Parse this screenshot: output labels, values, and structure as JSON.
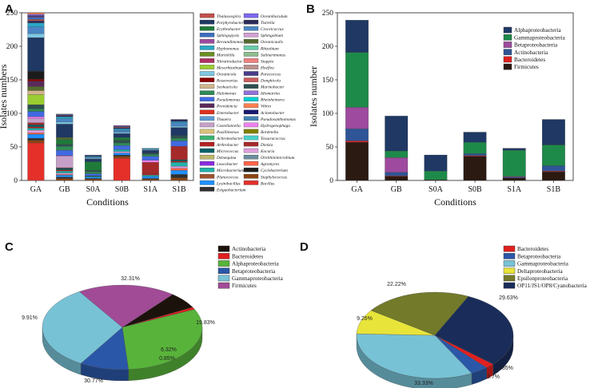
{
  "panels": {
    "a": "A",
    "b": "B",
    "c": "C",
    "d": "D"
  },
  "chart_data": [
    {
      "id": "A",
      "type": "bar",
      "stacked": true,
      "xlabel": "Conditions",
      "ylabel": "Isolates numbers",
      "ylim": [
        0,
        250
      ],
      "yticks": [
        0,
        50,
        100,
        150,
        200,
        250
      ],
      "categories": [
        "GA",
        "GB",
        "S0A",
        "S0B",
        "S1A",
        "S1B"
      ],
      "totals": [
        239,
        96,
        38,
        72,
        48,
        91
      ],
      "legend": [
        {
          "name": "Thalassospira",
          "color": "#c0504d"
        },
        {
          "name": "Porphyrobacter",
          "color": "#1f3864"
        },
        {
          "name": "Erythrobacter",
          "color": "#1f7a3a"
        },
        {
          "name": "Sphingopyxis",
          "color": "#3a6ec0"
        },
        {
          "name": "Brevundimonas",
          "color": "#9e4a9e"
        },
        {
          "name": "Hyphomonas",
          "color": "#2aa8c8"
        },
        {
          "name": "Martelella",
          "color": "#6b8e23"
        },
        {
          "name": "Nitratireductor",
          "color": "#b03060"
        },
        {
          "name": "Mesorhizobium",
          "color": "#9acd32"
        },
        {
          "name": "Oceanicola",
          "color": "#7ec8e3"
        },
        {
          "name": "Roseovarius",
          "color": "#8b0000"
        },
        {
          "name": "Seohaeicola",
          "color": "#d2b48c"
        },
        {
          "name": "Halomonas",
          "color": "#2e8b57"
        },
        {
          "name": "Pseudomonas",
          "color": "#4169e1"
        },
        {
          "name": "Providencia",
          "color": "#5a2a5a"
        },
        {
          "name": "Enterobacter",
          "color": "#e0301e"
        },
        {
          "name": "Thauera",
          "color": "#5b9bd5"
        },
        {
          "name": "Castellaniella",
          "color": "#c6a0c8"
        },
        {
          "name": "Pusillimonas",
          "color": "#d9c27a"
        },
        {
          "name": "Achromobacter",
          "color": "#3cb371"
        },
        {
          "name": "Arthrobacter",
          "color": "#b22222"
        },
        {
          "name": "Micrococcus",
          "color": "#006064"
        },
        {
          "name": "Demequina",
          "color": "#bdb76b"
        },
        {
          "name": "Leucobacter",
          "color": "#8a2be2"
        },
        {
          "name": "Microbacterium",
          "color": "#20b2aa"
        },
        {
          "name": "Planococcus",
          "color": "#a0522d"
        },
        {
          "name": "Lysinibacillus",
          "color": "#1e90ff"
        },
        {
          "name": "Exiguobacterium",
          "color": "#2f2f2f"
        },
        {
          "name": "Oceanibaculum",
          "color": "#7b68ee"
        },
        {
          "name": "Tistrella",
          "color": "#2b2b5a"
        },
        {
          "name": "Croceicoccus",
          "color": "#4a86c5"
        },
        {
          "name": "Sphingobium",
          "color": "#d4a0d4"
        },
        {
          "name": "Oceanicaulis",
          "color": "#556b2f"
        },
        {
          "name": "Rhizobium",
          "color": "#66cdaa"
        },
        {
          "name": "Salinarimonas",
          "color": "#8fbc8f"
        },
        {
          "name": "Stappia",
          "color": "#f08080"
        },
        {
          "name": "Hoeflea",
          "color": "#bc8f8f"
        },
        {
          "name": "Paracoccus",
          "color": "#483d8b"
        },
        {
          "name": "Donghicola",
          "color": "#cd5c5c"
        },
        {
          "name": "Marinobacter",
          "color": "#2f4f4f"
        },
        {
          "name": "Idiomarina",
          "color": "#9370db"
        },
        {
          "name": "Rheinheimera",
          "color": "#00ced1"
        },
        {
          "name": "Vibrio",
          "color": "#ff7f50"
        },
        {
          "name": "Acinetobacter",
          "color": "#191970"
        },
        {
          "name": "Pseudoxanthomonas",
          "color": "#4682b4"
        },
        {
          "name": "Hydrogenophaga",
          "color": "#ee82ee"
        },
        {
          "name": "Bordetella",
          "color": "#808000"
        },
        {
          "name": "Tessaracoccus",
          "color": "#48d1cc"
        },
        {
          "name": "Dietzia",
          "color": "#a52a2a"
        },
        {
          "name": "Kocuria",
          "color": "#dda0dd"
        },
        {
          "name": "Ornithinimicrobium",
          "color": "#6b8e9e"
        },
        {
          "name": "Agromyces",
          "color": "#ff6347"
        },
        {
          "name": "Cyclobacterium",
          "color": "#1c1c1c"
        },
        {
          "name": "Staphylococcus",
          "color": "#8b4513"
        },
        {
          "name": "Bacillus",
          "color": "#e5302a"
        }
      ],
      "series": [
        {
          "name": "Bacillus",
          "color": "#e5302a",
          "values": [
            56,
            0,
            0,
            33,
            0,
            0
          ]
        },
        {
          "name": "Staphylococcus",
          "color": "#8b4513",
          "values": [
            4,
            3,
            2,
            3,
            2,
            4
          ]
        },
        {
          "name": "Exiguobacterium",
          "color": "#2f2f2f",
          "values": [
            3,
            2,
            1,
            2,
            1,
            5
          ]
        },
        {
          "name": "Lysinibacillus",
          "color": "#1e90ff",
          "values": [
            6,
            3,
            2,
            3,
            3,
            6
          ]
        },
        {
          "name": "Agromyces",
          "color": "#ff6347",
          "values": [
            2,
            1,
            0,
            0,
            0,
            3
          ]
        },
        {
          "name": "Kocuria",
          "color": "#dda0dd",
          "values": [
            4,
            2,
            0,
            2,
            0,
            3
          ]
        },
        {
          "name": "Microbacterium",
          "color": "#20b2aa",
          "values": [
            3,
            3,
            1,
            3,
            2,
            6
          ]
        },
        {
          "name": "Arthrobacter",
          "color": "#b22222",
          "values": [
            2,
            2,
            0,
            0,
            2,
            2
          ]
        },
        {
          "name": "Micrococcus",
          "color": "#006064",
          "values": [
            3,
            2,
            1,
            0,
            0,
            2
          ]
        },
        {
          "name": "Dietzia",
          "color": "#a52a2a",
          "values": [
            3,
            1,
            0,
            0,
            17,
            20
          ]
        },
        {
          "name": "Castellaniella",
          "color": "#c6a0c8",
          "values": [
            6,
            17,
            0,
            0,
            0,
            0
          ]
        },
        {
          "name": "Hydrogenophaga",
          "color": "#ee82ee",
          "values": [
            3,
            1,
            0,
            0,
            3,
            0
          ]
        },
        {
          "name": "Pseudomonas",
          "color": "#4169e1",
          "values": [
            8,
            8,
            3,
            6,
            6,
            8
          ]
        },
        {
          "name": "Halomonas",
          "color": "#2e8b57",
          "values": [
            4,
            6,
            3,
            4,
            3,
            4
          ]
        },
        {
          "name": "Marinobacter",
          "color": "#2f4f4f",
          "values": [
            6,
            3,
            2,
            4,
            2,
            4
          ]
        },
        {
          "name": "Mesorhizobium",
          "color": "#9acd32",
          "values": [
            15,
            0,
            0,
            0,
            0,
            0
          ]
        },
        {
          "name": "Seohaeicola",
          "color": "#d2b48c",
          "values": [
            6,
            0,
            0,
            0,
            0,
            0
          ]
        },
        {
          "name": "Erythrobacter",
          "color": "#1f7a3a",
          "values": [
            0,
            7,
            13,
            4,
            0,
            0
          ]
        },
        {
          "name": "Oceanicaulis",
          "color": "#556b2f",
          "values": [
            6,
            3,
            0,
            0,
            0,
            0
          ]
        },
        {
          "name": "Providencia",
          "color": "#5a2a5a",
          "values": [
            8,
            0,
            0,
            0,
            0,
            0
          ]
        },
        {
          "name": "Roseovarius",
          "color": "#8b0000",
          "values": [
            3,
            0,
            0,
            0,
            0,
            0
          ]
        },
        {
          "name": "Cyclobacterium",
          "color": "#1c1c1c",
          "values": [
            12,
            0,
            0,
            0,
            0,
            0
          ]
        },
        {
          "name": "Porphyrobacter",
          "color": "#1f3864",
          "values": [
            50,
            20,
            4,
            6,
            4,
            12
          ]
        },
        {
          "name": "Oceanicola",
          "color": "#7ec8e3",
          "values": [
            6,
            3,
            1,
            2,
            1,
            2
          ]
        },
        {
          "name": "Croceicoccus",
          "color": "#4a86c5",
          "values": [
            10,
            5,
            2,
            3,
            1,
            5
          ]
        },
        {
          "name": "Hyphomonas",
          "color": "#2aa8c8",
          "values": [
            6,
            3,
            1,
            2,
            1,
            2
          ]
        },
        {
          "name": "Tistrella",
          "color": "#2b2b5a",
          "values": [
            3,
            2,
            1,
            2,
            0,
            3
          ]
        },
        {
          "name": "Thalassospira",
          "color": "#c0504d",
          "values": [
            2,
            1,
            0,
            1,
            0,
            0
          ]
        },
        {
          "name": "Sphingopyxis",
          "color": "#3a6ec0",
          "values": [
            3,
            1,
            1,
            1,
            0,
            0
          ]
        },
        {
          "name": "Brevundimonas",
          "color": "#9e4a9e",
          "values": [
            1,
            0,
            0,
            1,
            0,
            0
          ]
        },
        {
          "name": "Paracoccus",
          "color": "#483d8b",
          "values": [
            2,
            0,
            0,
            0,
            0,
            0
          ]
        },
        {
          "name": "Idiomarina",
          "color": "#9370db",
          "values": [
            2,
            0,
            0,
            0,
            0,
            0
          ]
        },
        {
          "name": "Vibrio",
          "color": "#ff7f50",
          "values": [
            2,
            0,
            0,
            0,
            0,
            0
          ]
        }
      ]
    },
    {
      "id": "B",
      "type": "bar",
      "stacked": true,
      "xlabel": "Conditions",
      "ylabel": "Isolates number",
      "ylim": [
        0,
        250
      ],
      "yticks": [
        0,
        50,
        100,
        150,
        200,
        250
      ],
      "categories": [
        "GA",
        "GB",
        "S0A",
        "S0B",
        "S1A",
        "S1B"
      ],
      "legend": [
        {
          "name": "Alphaproteobacteria",
          "color": "#1f3864"
        },
        {
          "name": "Gammaproteobacteria",
          "color": "#1e8a4a"
        },
        {
          "name": "Betaproteobacteria",
          "color": "#9e4a9e"
        },
        {
          "name": "Actinobacteria",
          "color": "#2f5597"
        },
        {
          "name": "Bacteroidetes",
          "color": "#e02020"
        },
        {
          "name": "Firmicutes",
          "color": "#2b1a12"
        }
      ],
      "series": [
        {
          "name": "Firmicutes",
          "color": "#2b1a12",
          "values": [
            57,
            6,
            1,
            36,
            4,
            13
          ]
        },
        {
          "name": "Bacteroidetes",
          "color": "#e02020",
          "values": [
            2,
            1,
            0,
            1,
            0,
            1
          ]
        },
        {
          "name": "Actinobacteria",
          "color": "#2f5597",
          "values": [
            18,
            5,
            0,
            3,
            1,
            8
          ]
        },
        {
          "name": "Betaproteobacteria",
          "color": "#9e4a9e",
          "values": [
            32,
            22,
            0,
            0,
            1,
            0
          ]
        },
        {
          "name": "Gammaproteobacteria",
          "color": "#1e8a4a",
          "values": [
            82,
            10,
            13,
            17,
            39,
            31
          ]
        },
        {
          "name": "Alphaproteobacteria",
          "color": "#1f3864",
          "values": [
            48,
            52,
            24,
            15,
            3,
            38
          ]
        }
      ]
    },
    {
      "id": "C",
      "type": "pie",
      "style": "3d",
      "slices": [
        {
          "name": "Actinobacteria",
          "color": "#1c120c",
          "value": 6.32,
          "label": "6.32%"
        },
        {
          "name": "Bacteroidetes",
          "color": "#e02020",
          "value": 0.85,
          "label": "0.85%"
        },
        {
          "name": "Alphaproteobacteria",
          "color": "#58b33a",
          "value": 30.77,
          "label": "30.77%"
        },
        {
          "name": "Betaproteobacteria",
          "color": "#2b57a8",
          "value": 9.91,
          "label": "9.91%"
        },
        {
          "name": "Gammaproteobacteria",
          "color": "#78c2d6",
          "value": 32.31,
          "label": "32.31%"
        },
        {
          "name": "Firmicutes",
          "color": "#a14b97",
          "value": 19.83,
          "label": "19.83%"
        }
      ]
    },
    {
      "id": "D",
      "type": "pie",
      "style": "3d",
      "slices": [
        {
          "name": "Bacteroidetes",
          "color": "#e02020",
          "value": 1.85,
          "label": "1.85%"
        },
        {
          "name": "Betaproteobacteria",
          "color": "#2b57a8",
          "value": 3.7,
          "label": "3.7%"
        },
        {
          "name": "Gammaproteobacteria",
          "color": "#78c2d6",
          "value": 33.33,
          "label": "33.33%"
        },
        {
          "name": "Deltaproteobacteria",
          "color": "#e8e43a",
          "value": 9.26,
          "label": "9.26%"
        },
        {
          "name": "Epsilonproteobacteria",
          "color": "#737a2a",
          "value": 22.22,
          "label": "22.22%"
        },
        {
          "name": "OP11/JS1/OP8/Cyanobacteria",
          "color": "#1a2d5a",
          "value": 29.63,
          "label": "29.63%"
        }
      ]
    }
  ]
}
